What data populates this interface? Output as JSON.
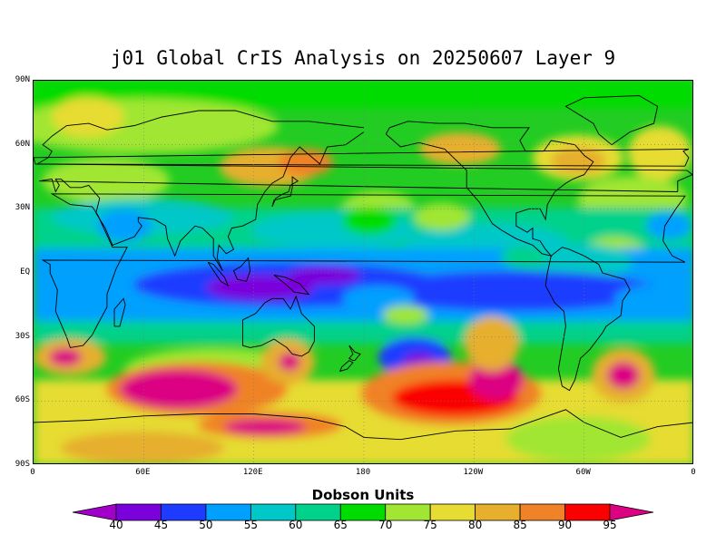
{
  "title": "j01 Global CrIS Analysis on 20250607 Layer 9",
  "lat_labels": [
    "90N",
    "60N",
    "30N",
    "EQ",
    "30S",
    "60S",
    "90S"
  ],
  "lon_labels": [
    "0",
    "60E",
    "120E",
    "180",
    "120W",
    "60W",
    "0"
  ],
  "colorbar": {
    "label": "Dobson Units",
    "ticks": [
      "40",
      "45",
      "50",
      "55",
      "60",
      "65",
      "70",
      "75",
      "80",
      "85",
      "90",
      "95"
    ],
    "colors": [
      "#a000c8",
      "#7a00dc",
      "#1e3cff",
      "#00a0ff",
      "#00c8c8",
      "#00d28c",
      "#00dc00",
      "#a0e632",
      "#e6dc32",
      "#e6af2d",
      "#f08228",
      "#fa0000",
      "#dc0082"
    ]
  },
  "map": {
    "background": "#22cc22",
    "palette": {
      "violet": "#7a00dc",
      "blue": "#1e3cff",
      "sky": "#00a0ff",
      "cyan": "#00c8c8",
      "teal": "#00d28c",
      "green": "#00dc00",
      "lime": "#a0e632",
      "yellow": "#e6dc32",
      "gold": "#e6af2d",
      "orange": "#f08228",
      "red": "#fa0000",
      "magenta": "#dc0082"
    }
  }
}
